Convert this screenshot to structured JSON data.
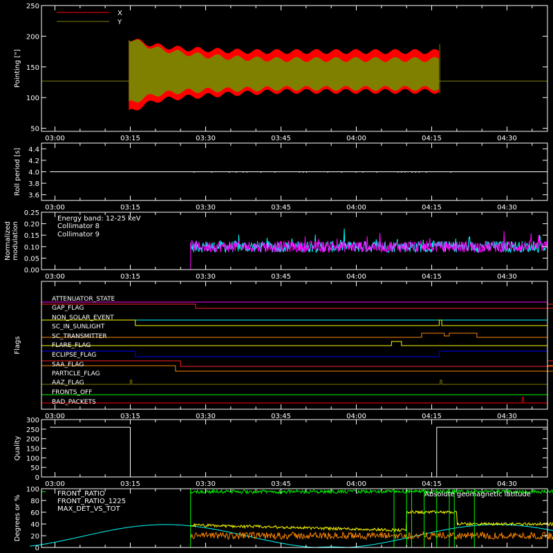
{
  "chart_data": [
    {
      "type": "line",
      "ylabel": "Pointing [\"]",
      "ylim": [
        45,
        250
      ],
      "yticks": [
        50,
        100,
        150,
        200,
        250
      ],
      "x_tick_labels": [
        "03:00",
        "03:15",
        "03:30",
        "03:45",
        "04:00",
        "04:15",
        "04:30"
      ],
      "legend_position": "top-left",
      "baseline": 127,
      "series": [
        {
          "name": "X",
          "color": "#ff0000",
          "x": [
            "03:14",
            "03:15",
            "03:20",
            "03:25",
            "03:30",
            "03:35",
            "03:40",
            "03:45",
            "03:50",
            "03:55",
            "04:00",
            "04:05",
            "04:10",
            "04:15",
            "04:16"
          ],
          "upper": [
            205,
            195,
            185,
            180,
            178,
            176,
            175,
            175,
            175,
            175,
            175,
            175,
            175,
            175,
            175
          ],
          "lower": [
            68,
            78,
            95,
            100,
            103,
            106,
            108,
            110,
            110,
            110,
            110,
            110,
            110,
            110,
            110
          ]
        },
        {
          "name": "Y",
          "color": "#808000",
          "x": [
            "03:14",
            "03:15",
            "03:20",
            "03:25",
            "03:30",
            "03:35",
            "03:40",
            "03:45",
            "03:50",
            "03:55",
            "04:00",
            "04:05",
            "04:10",
            "04:15",
            "04:16"
          ],
          "upper": [
            205,
            195,
            180,
            173,
            168,
            165,
            163,
            162,
            162,
            162,
            162,
            162,
            162,
            162,
            162
          ],
          "lower": [
            85,
            92,
            105,
            110,
            112,
            113,
            114,
            115,
            115,
            115,
            115,
            115,
            115,
            115,
            115
          ]
        }
      ]
    },
    {
      "type": "line",
      "ylabel": "Roll period [s]",
      "ylim": [
        3.5,
        4.5
      ],
      "yticks": [
        3.6,
        3.8,
        4.0,
        4.2,
        4.4
      ],
      "x_tick_labels": [
        "03:00",
        "03:15",
        "03:30",
        "03:45",
        "04:00",
        "04:15",
        "04:30"
      ],
      "series": [
        {
          "name": "",
          "color": "#ffffff",
          "x": [
            "02:59",
            "04:38"
          ],
          "values": [
            4.0,
            4.0
          ]
        }
      ]
    },
    {
      "type": "line",
      "ylabel": "Normalized modulation",
      "ylim": [
        0,
        0.25
      ],
      "yticks": [
        0.0,
        0.05,
        0.1,
        0.15,
        0.2,
        0.25
      ],
      "x_tick_labels": [
        "03:00",
        "03:15",
        "03:30",
        "03:45",
        "04:00",
        "04:15",
        "04:30"
      ],
      "annotation": "Energy band: 12-25 keV",
      "legend_position": "top-left",
      "series": [
        {
          "name": "Collimator 8",
          "color": "#00ffff",
          "x_range": [
            "03:27",
            "04:38"
          ],
          "mean": 0.1
        },
        {
          "name": "Collimator 9",
          "color": "#ff00ff",
          "x_range": [
            "03:27",
            "04:38"
          ],
          "mean": 0.1
        }
      ]
    },
    {
      "type": "line",
      "ylabel": "Flags",
      "x_tick_labels": [
        "03:00",
        "03:15",
        "03:30",
        "03:45",
        "04:00",
        "04:15",
        "04:30"
      ],
      "flags": [
        {
          "name": "ATTENUATOR_STATE",
          "color": "#ff00ff"
        },
        {
          "name": "GAP_FLAG",
          "color": "#ff2222"
        },
        {
          "name": "NON_SOLAR_EVENT",
          "color": "#00ffff"
        },
        {
          "name": "SC_IN_SUNLIGHT",
          "color": "#ffff00"
        },
        {
          "name": "SC_TRANSMITTER",
          "color": "#ff8800"
        },
        {
          "name": "FLARE_FLAG",
          "color": "#ffff00"
        },
        {
          "name": "ECLIPSE_FLAG",
          "color": "#0000ff"
        },
        {
          "name": "SAA_FLAG",
          "color": "#ff2222"
        },
        {
          "name": "PARTICLE_FLAG",
          "color": "#ff8800"
        },
        {
          "name": "AAZ_FLAG",
          "color": "#808000"
        },
        {
          "name": "FRONTS_OFF",
          "color": "#00ff00"
        },
        {
          "name": "BAD_PACKETS",
          "color": "#ff0000"
        }
      ]
    },
    {
      "type": "line",
      "ylabel": "Quality",
      "ylim": [
        0,
        300
      ],
      "yticks": [
        0,
        50,
        100,
        150,
        200,
        250,
        300
      ],
      "x_tick_labels": [
        "03:00",
        "03:15",
        "03:30",
        "03:45",
        "04:00",
        "04:15",
        "04:30"
      ],
      "series": [
        {
          "name": "",
          "color": "#ffffff",
          "x": [
            "02:59",
            "03:15",
            "03:15",
            "04:16",
            "04:16",
            "04:38"
          ],
          "values": [
            260,
            260,
            0,
            0,
            260,
            260
          ]
        }
      ]
    },
    {
      "type": "line",
      "ylabel": "Degrees or %",
      "ylim": [
        0,
        100
      ],
      "yticks": [
        0,
        20,
        40,
        60,
        80,
        100
      ],
      "legend_position": "top-left",
      "annotation": "Absolute geomagnetic latitude",
      "annotation_color": "#00ffff",
      "series": [
        {
          "name": "FRONT_RATIO",
          "color": "#ffff00"
        },
        {
          "name": "FRONT_RATIO_1225",
          "color": "#00ff00"
        },
        {
          "name": "MAX_DET_VS_TOT",
          "color": "#ff8800"
        }
      ]
    }
  ]
}
